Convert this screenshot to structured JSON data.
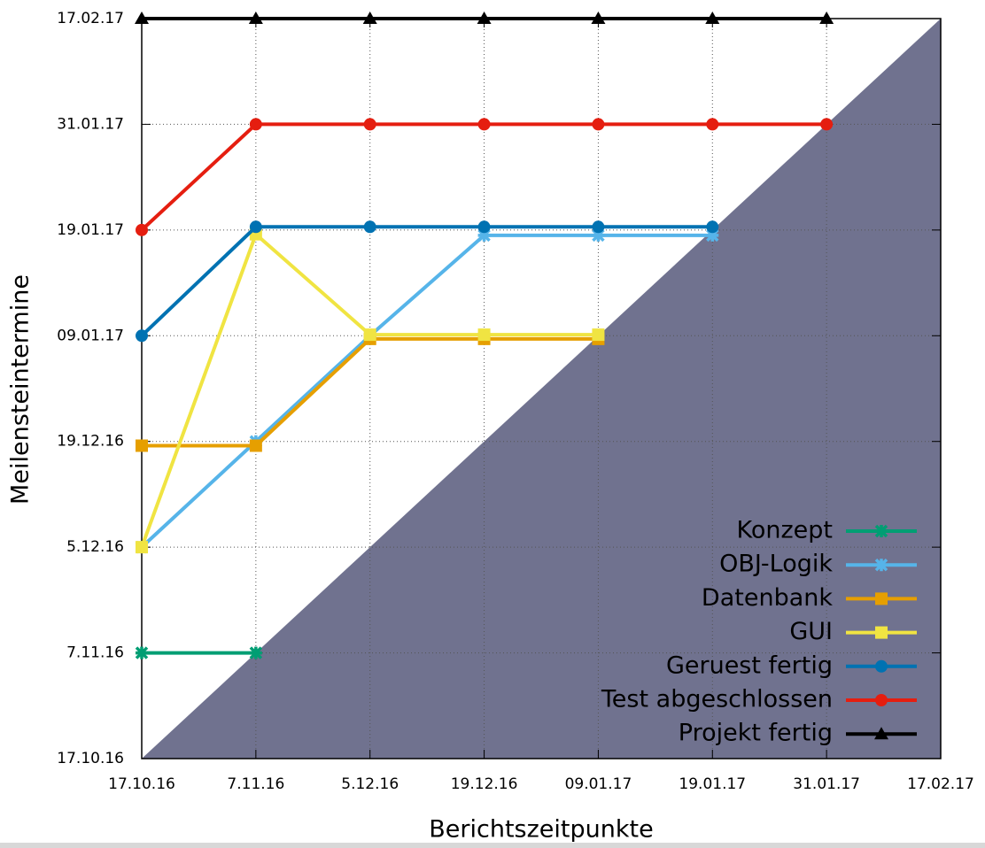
{
  "chart_data": {
    "type": "line",
    "x_label": "Berichtszeitpunkte",
    "y_label": "Meilensteintermine",
    "categories": [
      "17.10.16",
      "7.11.16",
      "5.12.16",
      "19.12.16",
      "09.01.17",
      "19.01.17",
      "31.01.17",
      "17.02.17"
    ],
    "ylim": [
      0,
      7
    ],
    "yticks": [
      {
        "value": 0,
        "label": "17.10.16"
      },
      {
        "value": 1,
        "label": "7.11.16"
      },
      {
        "value": 2,
        "label": "5.12.16"
      },
      {
        "value": 3,
        "label": "19.12.16"
      },
      {
        "value": 4,
        "label": "09.01.17"
      },
      {
        "value": 5,
        "label": "19.01.17"
      },
      {
        "value": 6,
        "label": "31.01.17"
      },
      {
        "value": 7,
        "label": "17.02.17"
      }
    ],
    "grid": true,
    "legend": "lower right",
    "series": [
      {
        "name": "Konzept",
        "color": "#009e73",
        "marker": "x",
        "values": [
          1,
          1,
          null,
          null,
          null,
          null,
          null,
          null
        ]
      },
      {
        "name": "OBJ-Logik",
        "color": "#56b4e9",
        "marker": "x",
        "values": [
          2,
          3,
          4,
          4.95,
          4.95,
          4.95,
          null,
          null
        ]
      },
      {
        "name": "Datenbank",
        "color": "#e69f00",
        "marker": "square",
        "values": [
          2.96,
          2.96,
          3.97,
          3.97,
          3.97,
          null,
          null,
          null
        ]
      },
      {
        "name": "GUI",
        "color": "#f0e442",
        "marker": "square",
        "values": [
          2,
          4.96,
          4.01,
          4.01,
          4.01,
          null,
          null,
          null
        ]
      },
      {
        "name": "Geruest fertig",
        "color": "#0072b2",
        "marker": "circle",
        "values": [
          4,
          5.03,
          5.03,
          5.03,
          5.03,
          5.03,
          null,
          null
        ]
      },
      {
        "name": "Test abgeschlossen",
        "color": "#e51e10",
        "marker": "circle",
        "values": [
          5,
          6,
          6,
          6,
          6,
          6,
          6,
          null
        ]
      },
      {
        "name": "Projekt fertig",
        "color": "#000000",
        "marker": "triangle",
        "values": [
          7,
          7,
          7,
          7,
          7,
          7,
          7,
          null
        ]
      }
    ]
  }
}
